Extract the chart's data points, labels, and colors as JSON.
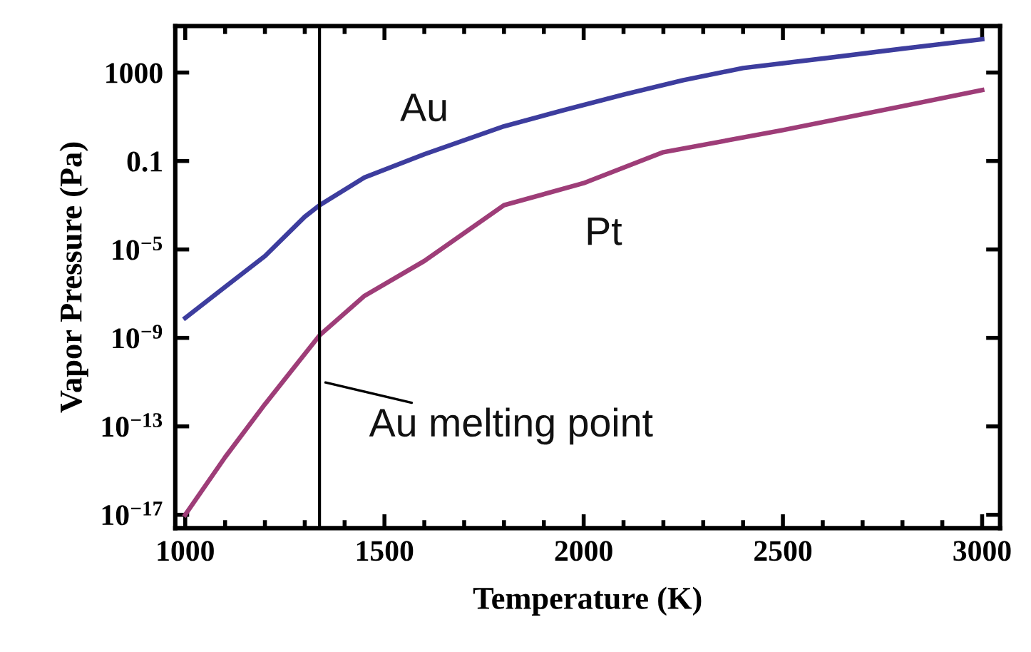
{
  "chart_data": {
    "type": "line",
    "xlabel": "Temperature (K)",
    "ylabel": "Vapor Pressure (Pa)",
    "log": "y",
    "xlim": [
      975,
      3045
    ],
    "ylim": [
      2.5e-18,
      126000.0
    ],
    "xticks": [
      1000,
      1500,
      2000,
      2500,
      3000
    ],
    "yticks": [
      {
        "value": 1000,
        "label": "1000"
      },
      {
        "value": 0.1,
        "label": "0.1"
      },
      {
        "value": 1e-05,
        "label": "10$^{−5}$"
      },
      {
        "value": 1e-09,
        "label": "10$^{−9}$"
      },
      {
        "value": 1e-13,
        "label": "10$^{−13}$"
      },
      {
        "value": 1e-17,
        "label": "10$^{−17}$"
      }
    ],
    "grid": false,
    "legend": false,
    "series": [
      {
        "name": "Au",
        "color": "#3d3d9e",
        "x": [
          1000,
          1100,
          1200,
          1300,
          1337,
          1450,
          1600,
          1800,
          1950,
          2100,
          2250,
          2400,
          2630,
          2800,
          3000
        ],
        "values": [
          8e-09,
          2e-07,
          5e-06,
          0.0003,
          0.001,
          0.018,
          0.2,
          3.7,
          20,
          100,
          450,
          1600,
          5000,
          12000,
          32000
        ]
      },
      {
        "name": "Pt",
        "color": "#9e3d78",
        "x": [
          1000,
          1100,
          1200,
          1337,
          1450,
          1600,
          1800,
          2000,
          2200,
          2500,
          2800,
          3000
        ],
        "values": [
          1e-17,
          4e-15,
          1e-12,
          1.3e-09,
          8e-08,
          3e-06,
          0.001,
          0.01,
          0.25,
          2.5,
          30,
          160
        ]
      }
    ],
    "ref_lines": [
      {
        "axis": "x",
        "value": 1337,
        "label": "Au melting point",
        "color": "#000000"
      }
    ]
  }
}
